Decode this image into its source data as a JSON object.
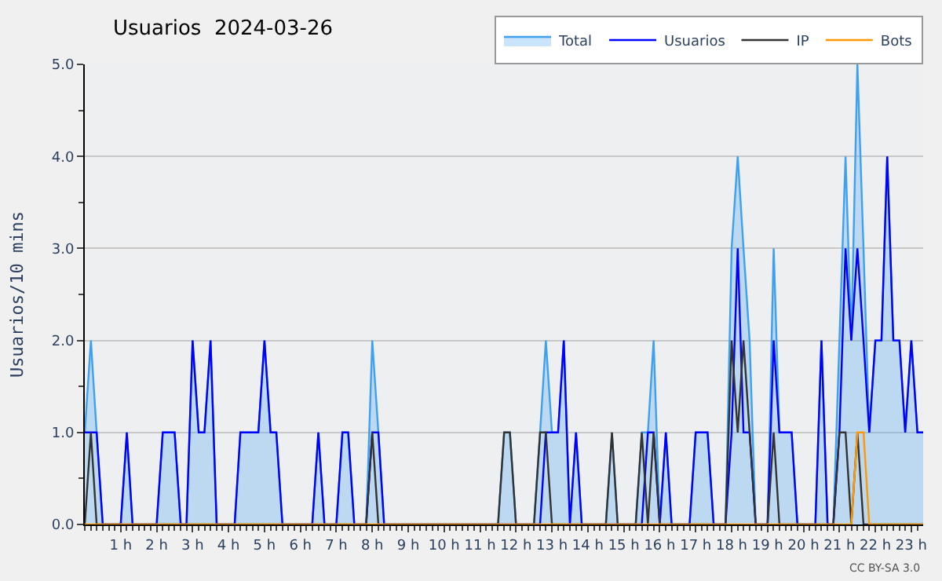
{
  "chart_data": {
    "type": "line",
    "title": "Usuarios  2024-03-26",
    "ylabel": "Usuarios/10 mins",
    "x": [
      0,
      0.17,
      0.33,
      0.5,
      0.67,
      0.83,
      1,
      1.17,
      1.33,
      1.5,
      1.67,
      1.83,
      2,
      2.17,
      2.33,
      2.5,
      2.67,
      2.83,
      3,
      3.17,
      3.33,
      3.5,
      3.67,
      3.83,
      4,
      4.17,
      4.33,
      4.5,
      4.67,
      4.83,
      5,
      5.17,
      5.33,
      5.5,
      5.67,
      5.83,
      6,
      6.17,
      6.33,
      6.5,
      6.67,
      6.83,
      7,
      7.17,
      7.33,
      7.5,
      7.67,
      7.83,
      8,
      8.17,
      8.33,
      8.5,
      8.67,
      8.83,
      9,
      9.17,
      9.33,
      9.5,
      9.67,
      9.83,
      10,
      10.17,
      10.33,
      10.5,
      10.67,
      10.83,
      11,
      11.17,
      11.33,
      11.5,
      11.67,
      11.83,
      12,
      12.17,
      12.33,
      12.5,
      12.67,
      12.83,
      13,
      13.17,
      13.33,
      13.5,
      13.67,
      13.83,
      14,
      14.17,
      14.33,
      14.5,
      14.67,
      14.83,
      15,
      15.17,
      15.33,
      15.5,
      15.67,
      15.83,
      16,
      16.17,
      16.33,
      16.5,
      16.67,
      16.83,
      17,
      17.17,
      17.33,
      17.5,
      17.67,
      17.83,
      18,
      18.17,
      18.33,
      18.5,
      18.67,
      18.83,
      19,
      19.17,
      19.33,
      19.5,
      19.67,
      19.83,
      20,
      20.17,
      20.33,
      20.5,
      20.67,
      20.83,
      21,
      21.17,
      21.33,
      21.5,
      21.67,
      21.83,
      22,
      22.17,
      22.33,
      22.5,
      22.67,
      22.83,
      23,
      23.17,
      23.33
    ],
    "series": [
      {
        "name": "Total",
        "type": "area",
        "color": "#3fa0f0",
        "values": [
          1,
          2,
          1,
          0,
          0,
          0,
          0,
          1,
          0,
          0,
          0,
          0,
          0,
          1,
          1,
          1,
          0,
          0,
          2,
          1,
          1,
          2,
          0,
          0,
          0,
          0,
          1,
          1,
          1,
          1,
          2,
          1,
          1,
          0,
          0,
          0,
          0,
          0,
          0,
          1,
          0,
          0,
          0,
          1,
          1,
          0,
          0,
          0,
          2,
          1,
          0,
          0,
          0,
          0,
          0,
          0,
          0,
          0,
          0,
          0,
          0,
          0,
          0,
          0,
          0,
          0,
          0,
          0,
          0,
          0,
          1,
          1,
          0,
          0,
          0,
          0,
          1,
          2,
          1,
          1,
          2,
          0,
          1,
          0,
          0,
          0,
          0,
          0,
          1,
          0,
          0,
          0,
          0,
          1,
          1,
          2,
          0,
          1,
          0,
          0,
          0,
          0,
          1,
          1,
          1,
          0,
          0,
          0,
          3,
          4,
          3,
          2,
          0,
          0,
          0,
          3,
          1,
          1,
          1,
          0,
          0,
          0,
          0,
          2,
          0,
          0,
          2,
          4,
          2,
          5,
          3,
          1,
          2,
          2,
          4,
          2,
          2,
          1,
          2,
          1,
          1
        ]
      },
      {
        "name": "Usuarios",
        "type": "line",
        "color": "#0000ff",
        "values": [
          1,
          1,
          1,
          0,
          0,
          0,
          0,
          1,
          0,
          0,
          0,
          0,
          0,
          1,
          1,
          1,
          0,
          0,
          2,
          1,
          1,
          2,
          0,
          0,
          0,
          0,
          1,
          1,
          1,
          1,
          2,
          1,
          1,
          0,
          0,
          0,
          0,
          0,
          0,
          1,
          0,
          0,
          0,
          1,
          1,
          0,
          0,
          0,
          1,
          1,
          0,
          0,
          0,
          0,
          0,
          0,
          0,
          0,
          0,
          0,
          0,
          0,
          0,
          0,
          0,
          0,
          0,
          0,
          0,
          0,
          0,
          0,
          0,
          0,
          0,
          0,
          0,
          1,
          1,
          1,
          2,
          0,
          1,
          0,
          0,
          0,
          0,
          0,
          0,
          0,
          0,
          0,
          0,
          0,
          1,
          1,
          0,
          1,
          0,
          0,
          0,
          0,
          1,
          1,
          1,
          0,
          0,
          0,
          1,
          3,
          1,
          1,
          0,
          0,
          0,
          2,
          1,
          1,
          1,
          0,
          0,
          0,
          0,
          2,
          0,
          0,
          1,
          3,
          2,
          3,
          2,
          1,
          2,
          2,
          4,
          2,
          2,
          1,
          2,
          1,
          1
        ]
      },
      {
        "name": "IP",
        "type": "line",
        "color": "#333333",
        "values": [
          0,
          1,
          0,
          0,
          0,
          0,
          0,
          0,
          0,
          0,
          0,
          0,
          0,
          0,
          0,
          0,
          0,
          0,
          0,
          0,
          0,
          0,
          0,
          0,
          0,
          0,
          0,
          0,
          0,
          0,
          0,
          0,
          0,
          0,
          0,
          0,
          0,
          0,
          0,
          0,
          0,
          0,
          0,
          0,
          0,
          0,
          0,
          0,
          1,
          0,
          0,
          0,
          0,
          0,
          0,
          0,
          0,
          0,
          0,
          0,
          0,
          0,
          0,
          0,
          0,
          0,
          0,
          0,
          0,
          0,
          1,
          1,
          0,
          0,
          0,
          0,
          1,
          1,
          0,
          0,
          0,
          0,
          0,
          0,
          0,
          0,
          0,
          0,
          1,
          0,
          0,
          0,
          0,
          1,
          0,
          1,
          0,
          0,
          0,
          0,
          0,
          0,
          0,
          0,
          0,
          0,
          0,
          0,
          2,
          1,
          2,
          1,
          0,
          0,
          0,
          1,
          0,
          0,
          0,
          0,
          0,
          0,
          0,
          0,
          0,
          0,
          1,
          1,
          0,
          1,
          0,
          0,
          0,
          0,
          0,
          0,
          0,
          0,
          0,
          0,
          0
        ]
      },
      {
        "name": "Bots",
        "type": "line",
        "color": "#ff9900",
        "values": [
          0,
          0,
          0,
          0,
          0,
          0,
          0,
          0,
          0,
          0,
          0,
          0,
          0,
          0,
          0,
          0,
          0,
          0,
          0,
          0,
          0,
          0,
          0,
          0,
          0,
          0,
          0,
          0,
          0,
          0,
          0,
          0,
          0,
          0,
          0,
          0,
          0,
          0,
          0,
          0,
          0,
          0,
          0,
          0,
          0,
          0,
          0,
          0,
          0,
          0,
          0,
          0,
          0,
          0,
          0,
          0,
          0,
          0,
          0,
          0,
          0,
          0,
          0,
          0,
          0,
          0,
          0,
          0,
          0,
          0,
          0,
          0,
          0,
          0,
          0,
          0,
          0,
          0,
          0,
          0,
          0,
          0,
          0,
          0,
          0,
          0,
          0,
          0,
          0,
          0,
          0,
          0,
          0,
          0,
          0,
          0,
          0,
          0,
          0,
          0,
          0,
          0,
          0,
          0,
          0,
          0,
          0,
          0,
          0,
          0,
          0,
          0,
          0,
          0,
          0,
          0,
          0,
          0,
          0,
          0,
          0,
          0,
          0,
          0,
          0,
          0,
          0,
          0,
          0,
          1,
          1,
          0,
          0,
          0,
          0,
          0,
          0,
          0,
          0,
          0,
          0
        ]
      }
    ],
    "xlim": [
      0,
      23.33
    ],
    "xticks": [
      {
        "value": 1,
        "label": "1 h"
      },
      {
        "value": 2,
        "label": "2 h"
      },
      {
        "value": 3,
        "label": "3 h"
      },
      {
        "value": 4,
        "label": "4 h"
      },
      {
        "value": 5,
        "label": "5 h"
      },
      {
        "value": 6,
        "label": "6 h"
      },
      {
        "value": 7,
        "label": "7 h"
      },
      {
        "value": 8,
        "label": "8 h"
      },
      {
        "value": 9,
        "label": "9 h"
      },
      {
        "value": 10,
        "label": "10 h"
      },
      {
        "value": 11,
        "label": "11 h"
      },
      {
        "value": 12,
        "label": "12 h"
      },
      {
        "value": 13,
        "label": "13 h"
      },
      {
        "value": 14,
        "label": "14 h"
      },
      {
        "value": 15,
        "label": "15 h"
      },
      {
        "value": 16,
        "label": "16 h"
      },
      {
        "value": 17,
        "label": "17 h"
      },
      {
        "value": 18,
        "label": "18 h"
      },
      {
        "value": 19,
        "label": "19 h"
      },
      {
        "value": 20,
        "label": "20 h"
      },
      {
        "value": 21,
        "label": "21 h"
      },
      {
        "value": 22,
        "label": "22 h"
      },
      {
        "value": 23,
        "label": "23 h"
      }
    ],
    "ylim": [
      0,
      5
    ],
    "yticks": [
      {
        "value": 0,
        "label": "0.0"
      },
      {
        "value": 1,
        "label": "1.0"
      },
      {
        "value": 2,
        "label": "2.0"
      },
      {
        "value": 3,
        "label": "3.0"
      },
      {
        "value": 4,
        "label": "4.0"
      },
      {
        "value": 5,
        "label": "5.0"
      }
    ],
    "grid": "y",
    "legend": "top right",
    "annotations": [
      "CC BY-SA 3.0"
    ]
  }
}
